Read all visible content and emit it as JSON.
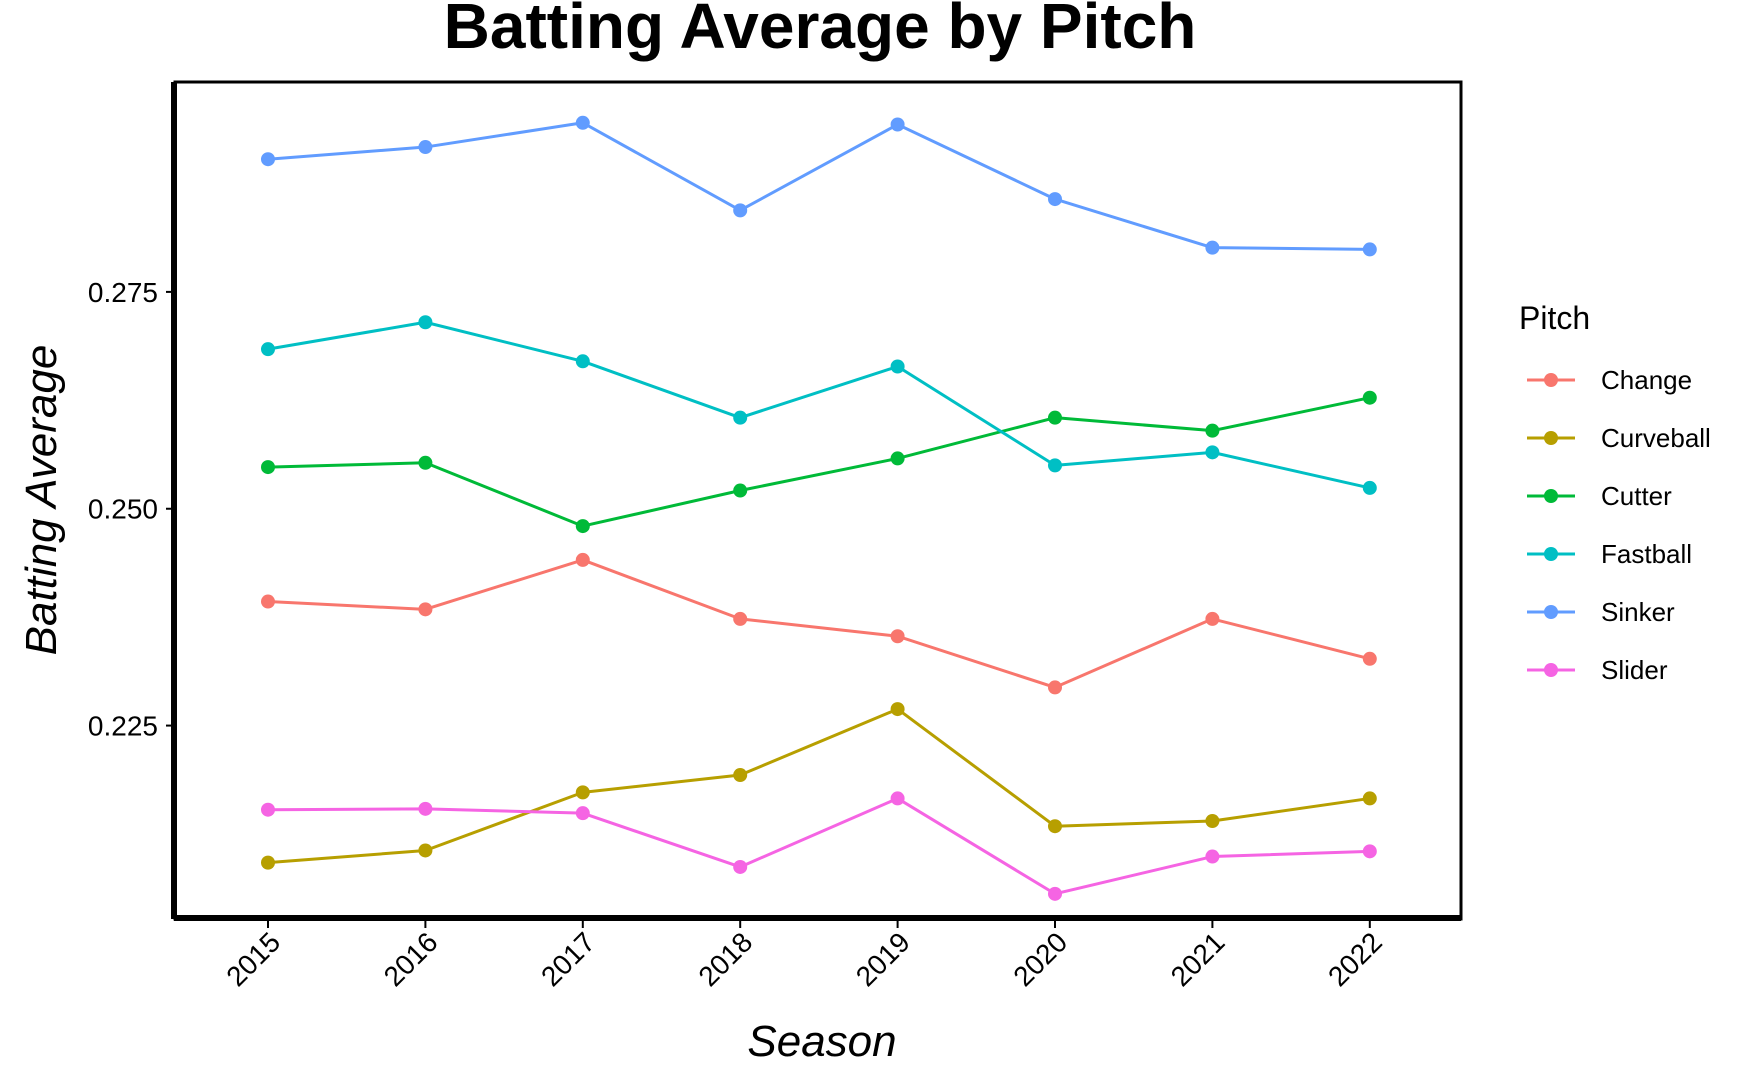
{
  "chart_data": {
    "type": "line",
    "title": "Batting Average by Pitch",
    "xlabel": "Season",
    "ylabel": "Batting Average",
    "x": [
      "2015",
      "2016",
      "2017",
      "2018",
      "2019",
      "2020",
      "2021",
      "2022"
    ],
    "yticks": [
      "0.225",
      "0.250",
      "0.275"
    ],
    "ylim": [
      0.2027,
      0.2992
    ],
    "grid": false,
    "legend": {
      "title": "Pitch",
      "position": "right"
    },
    "series": [
      {
        "name": "Change",
        "color": "#F8766D",
        "values": [
          0.2393,
          0.2384,
          0.2441,
          0.2373,
          0.2353,
          0.2294,
          0.2373,
          0.2327
        ]
      },
      {
        "name": "Curveball",
        "color": "#B79F00",
        "values": [
          0.2092,
          0.2106,
          0.2173,
          0.2193,
          0.2269,
          0.2134,
          0.214,
          0.2166
        ]
      },
      {
        "name": "Cutter",
        "color": "#00BA38",
        "values": [
          0.2548,
          0.2553,
          0.248,
          0.2521,
          0.2558,
          0.2605,
          0.259,
          0.2628
        ]
      },
      {
        "name": "Fastball",
        "color": "#00BFC4",
        "values": [
          0.2684,
          0.2715,
          0.267,
          0.2605,
          0.2664,
          0.255,
          0.2565,
          0.2524
        ]
      },
      {
        "name": "Sinker",
        "color": "#619CFF",
        "values": [
          0.2903,
          0.2917,
          0.2945,
          0.2844,
          0.2943,
          0.2857,
          0.2801,
          0.2799
        ]
      },
      {
        "name": "Slider",
        "color": "#F564E3",
        "values": [
          0.2153,
          0.2154,
          0.2149,
          0.2087,
          0.2166,
          0.2056,
          0.2099,
          0.2105
        ]
      }
    ]
  }
}
